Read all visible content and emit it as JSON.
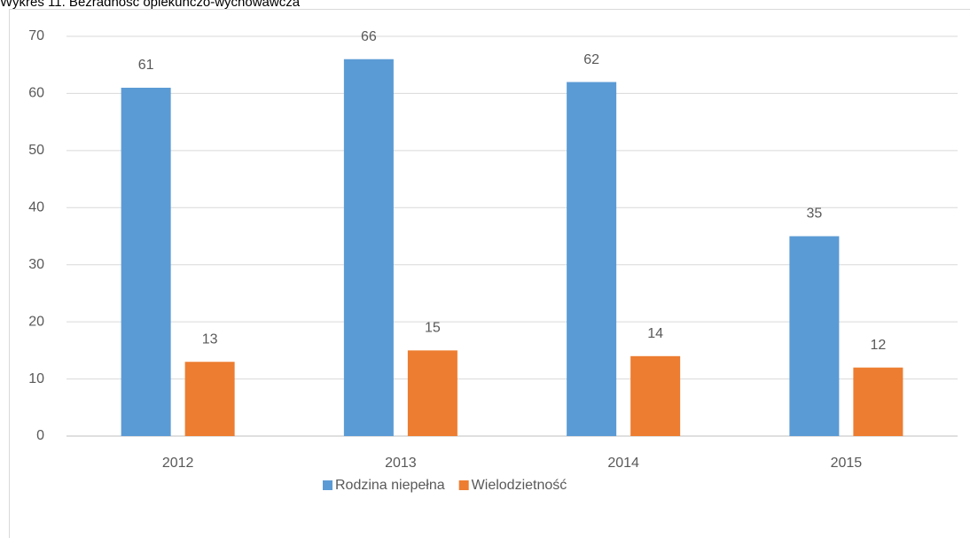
{
  "chart_data": {
    "type": "bar",
    "title": "Wykres 11. Bezradność opiekuńczo-wychowawcza",
    "categories": [
      "2012",
      "2013",
      "2014",
      "2015"
    ],
    "series": [
      {
        "name": "Rodzina niepełna",
        "color": "#5b9bd5",
        "values": [
          61,
          66,
          62,
          35
        ]
      },
      {
        "name": "Wielodzietność",
        "color": "#ed7d31",
        "values": [
          13,
          15,
          14,
          12
        ]
      }
    ],
    "ylim": [
      0,
      70
    ],
    "yticks": [
      0,
      10,
      20,
      30,
      40,
      50,
      60,
      70
    ],
    "grid": true,
    "legend": "bottom"
  }
}
